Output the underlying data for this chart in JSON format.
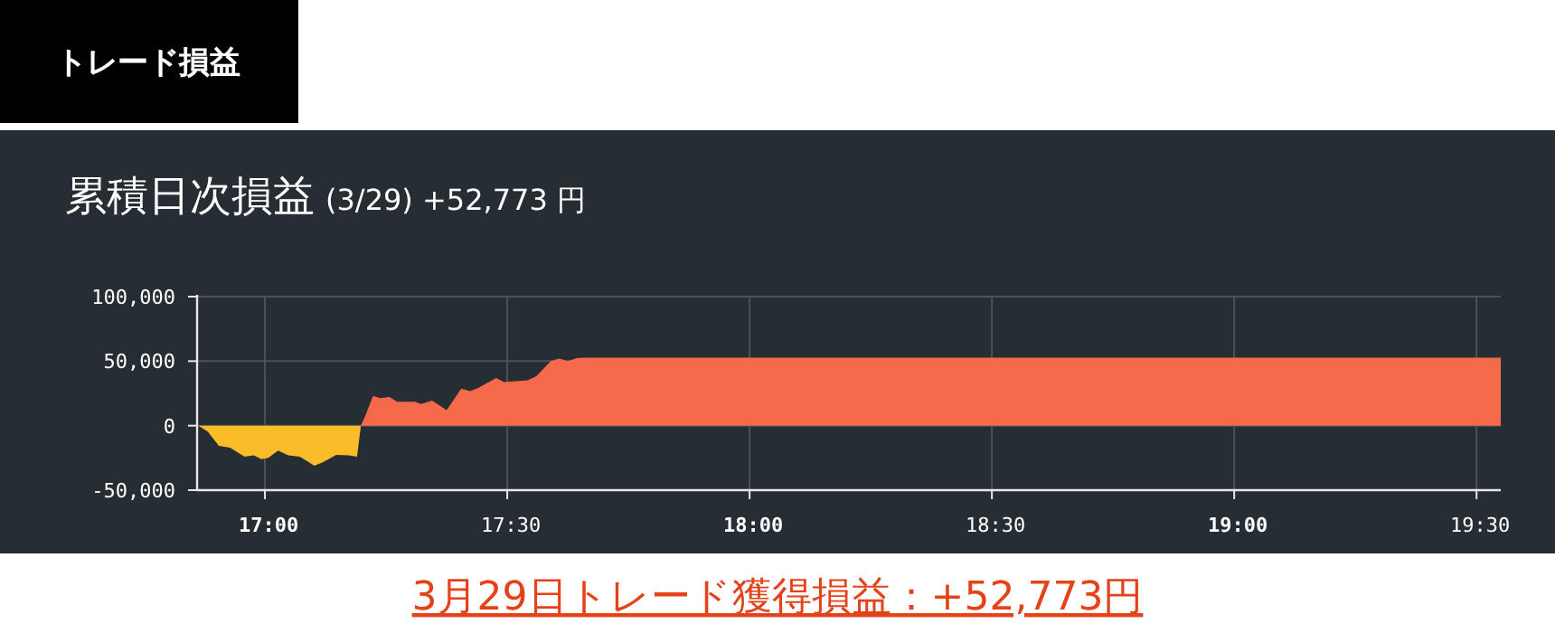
{
  "chart_data": {
    "type": "area",
    "title": "累積日次損益",
    "subtitle": "(3/29) +52,773 円",
    "annotations": [
      "トレード損益",
      "3月29日トレード獲得損益：+52,773円"
    ],
    "series": [
      {
        "color": "#fbbc2a",
        "x": [
          16.863,
          16.882,
          16.905,
          16.928,
          16.958,
          16.977,
          16.993,
          17.007,
          17.027,
          17.048,
          17.072,
          17.102,
          17.118,
          17.147,
          17.173,
          17.19,
          17.198
        ],
        "values": [
          0,
          -4600,
          -15700,
          -17100,
          -24000,
          -23100,
          -26000,
          -25000,
          -19400,
          -23100,
          -24000,
          -31000,
          -28700,
          -22700,
          -23100,
          -24000,
          0
        ]
      },
      {
        "color": "#f66a4c",
        "x": [
          17.198,
          17.208,
          17.223,
          17.238,
          17.257,
          17.273,
          17.31,
          17.322,
          17.345,
          17.375,
          17.405,
          17.423,
          17.44,
          17.477,
          17.493,
          17.542,
          17.56,
          17.59,
          17.607,
          17.625,
          17.643,
          17.658,
          19.55
        ],
        "values": [
          0,
          8300,
          23100,
          21300,
          22200,
          18500,
          18500,
          16700,
          19400,
          12000,
          28700,
          26800,
          29200,
          37000,
          33800,
          35200,
          38400,
          50000,
          51900,
          50000,
          52300,
          52773,
          52773
        ]
      }
    ],
    "xlim": [
      16.86,
      19.55
    ],
    "xticks": [
      {
        "value": 17,
        "label": "17:00"
      },
      {
        "value": 17.5,
        "label": "17:30"
      },
      {
        "value": 18,
        "label": "18:00"
      },
      {
        "value": 18.5,
        "label": "18:30"
      },
      {
        "value": 19,
        "label": "19:00"
      },
      {
        "value": 19.5,
        "label": "19:30"
      }
    ],
    "ylim": [
      -50000,
      100000
    ],
    "yticks": [
      {
        "value": -50000,
        "label": "-50,000"
      },
      {
        "value": 0,
        "label": "0"
      },
      {
        "value": 50000,
        "label": "50,000"
      },
      {
        "value": 100000,
        "label": "100,000"
      }
    ],
    "grid": true
  }
}
